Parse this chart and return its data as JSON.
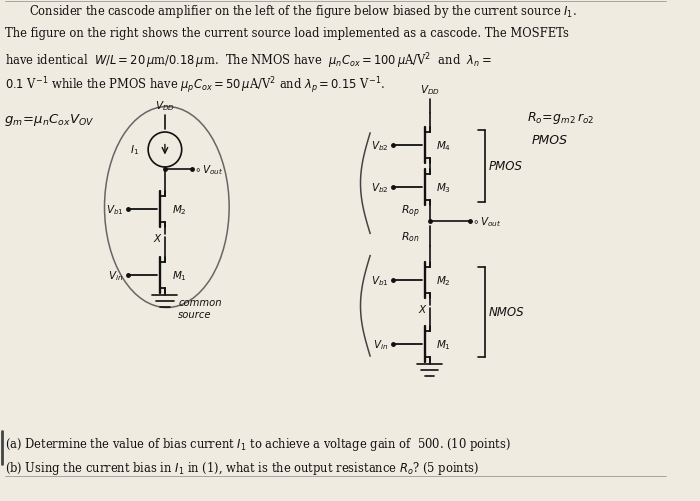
{
  "bg_color": "#f0ebe0",
  "text_color": "#111111",
  "line1": "Consider the cascode amplifier on the left of the figure below biased by the current source $I_1$.",
  "line2": "The figure on the right shows the current source load implemented as a cascode. The MOSFETs",
  "line3": "have identical  $W/L = 20\\,\\mu$m$/0.18\\,\\mu$m.  The NMOS have  $\\mu_n C_{ox} = 100\\,\\mu$A/V$^2$  and  $\\lambda_n =$",
  "line4": "$0.1$ V$^{-1}$ while the PMOS have $\\mu_p C_{ox} = 50\\,\\mu$A/V$^2$ and $\\lambda_p = 0.15$ V$^{-1}$.",
  "qa": "(a) Determine the value of bias current $I_1$ to achieve a voltage gain of  500. (10 points)",
  "qb": "(b) Using the current bias in $I_1$ in (1), what is the output resistance $R_o$? (5 points)"
}
